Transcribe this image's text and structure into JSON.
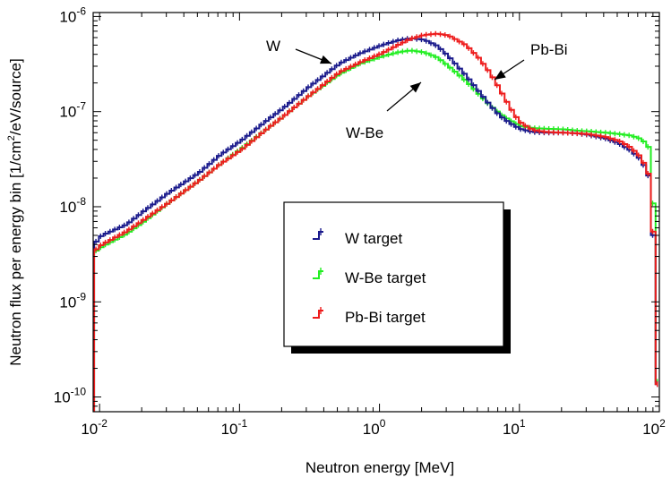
{
  "chart_data": {
    "type": "line",
    "title": "",
    "xlabel": "Neutron energy [MeV]",
    "ylabel_parts": [
      "Neutron flux per energy bin [1/cm",
      "2",
      "/eV/source]"
    ],
    "x_scale": "log",
    "y_scale": "log",
    "xlim": [
      0.009,
      100
    ],
    "ylim": [
      7e-11,
      1.1e-06
    ],
    "grid": false,
    "x_ticks": [
      {
        "value": 0.01,
        "base": "10",
        "exp": "-2"
      },
      {
        "value": 0.1,
        "base": "10",
        "exp": "-1"
      },
      {
        "value": 1,
        "base": "10",
        "exp": "0"
      },
      {
        "value": 10,
        "base": "10",
        "exp": "1"
      },
      {
        "value": 100,
        "base": "10",
        "exp": "2"
      }
    ],
    "y_ticks": [
      {
        "value": 1e-10,
        "base": "10",
        "exp": "-10"
      },
      {
        "value": 1e-09,
        "base": "10",
        "exp": "-9"
      },
      {
        "value": 1e-08,
        "base": "10",
        "exp": "-8"
      },
      {
        "value": 1e-07,
        "base": "10",
        "exp": "-7"
      },
      {
        "value": 1e-06,
        "base": "10",
        "exp": "-6"
      }
    ],
    "legend": {
      "position": "center",
      "entries": [
        {
          "label": "W target",
          "color": "#1a1a8c"
        },
        {
          "label": "W-Be target",
          "color": "#22ee22"
        },
        {
          "label": "Pb-Bi target",
          "color": "#ee1c1c"
        }
      ]
    },
    "annotations": [
      {
        "text": "W",
        "arrow_to": [
          0.58,
          4.5e-07
        ]
      },
      {
        "text": "Pb-Bi",
        "arrow_to": [
          6.0,
          2.9e-07
        ]
      },
      {
        "text": "W-Be",
        "arrow_to": [
          2.9,
          2.7e-07
        ]
      }
    ],
    "series": [
      {
        "name": "W target",
        "color": "#1a1a8c",
        "x": [
          0.009,
          0.01,
          0.015,
          0.02,
          0.03,
          0.05,
          0.07,
          0.1,
          0.15,
          0.2,
          0.3,
          0.5,
          0.7,
          1.0,
          1.3,
          1.6,
          2.0,
          2.5,
          3.0,
          4.0,
          5.0,
          6.0,
          7.0,
          8.0,
          9.0,
          10,
          12,
          15,
          20,
          25,
          30,
          40,
          50,
          60,
          70,
          80,
          85,
          88,
          90,
          92,
          95,
          98
        ],
        "y": [
          4.2e-09,
          5e-09,
          6.5e-09,
          9e-09,
          1.4e-08,
          2.3e-08,
          3.5e-08,
          5e-08,
          8e-08,
          1.1e-07,
          1.8e-07,
          3.2e-07,
          4.1e-07,
          5e-07,
          5.6e-07,
          5.9e-07,
          5.7e-07,
          4.9e-07,
          3.8e-07,
          2.4e-07,
          1.6e-07,
          1.15e-07,
          9e-08,
          7.8e-08,
          7e-08,
          6.5e-08,
          6.1e-08,
          6e-08,
          6e-08,
          5.9e-08,
          5.7e-08,
          5.2e-08,
          4.6e-08,
          3.9e-08,
          3.2e-08,
          2.3e-08,
          1e-08,
          3.5e-09,
          9e-10,
          2.5e-10,
          1e-10,
          8e-11
        ]
      },
      {
        "name": "W-Be target",
        "color": "#22ee22",
        "x": [
          0.009,
          0.01,
          0.015,
          0.02,
          0.03,
          0.05,
          0.07,
          0.1,
          0.15,
          0.2,
          0.3,
          0.5,
          0.7,
          1.0,
          1.3,
          1.6,
          2.0,
          2.5,
          3.0,
          4.0,
          5.0,
          6.0,
          7.0,
          8.0,
          9.0,
          10,
          12,
          15,
          20,
          25,
          30,
          40,
          50,
          60,
          70,
          80,
          85,
          88,
          90,
          92,
          95,
          98
        ],
        "y": [
          3.4e-09,
          3.8e-09,
          5.2e-09,
          7e-09,
          1.1e-08,
          1.9e-08,
          2.8e-08,
          4.1e-08,
          6.5e-08,
          9e-08,
          1.45e-07,
          2.5e-07,
          3.2e-07,
          3.8e-07,
          4.2e-07,
          4.4e-07,
          4.2e-07,
          3.7e-07,
          3e-07,
          2.1e-07,
          1.5e-07,
          1.15e-07,
          9.5e-08,
          8.3e-08,
          7.5e-08,
          7e-08,
          6.7e-08,
          6.6e-08,
          6.5e-08,
          6.3e-08,
          6.2e-08,
          6e-08,
          5.8e-08,
          5.6e-08,
          5.2e-08,
          4.5e-08,
          2.5e-08,
          7e-09,
          1.2e-09,
          3e-10,
          1e-10,
          8e-11
        ]
      },
      {
        "name": "Pb-Bi target",
        "color": "#ee1c1c",
        "x": [
          0.009,
          0.01,
          0.015,
          0.02,
          0.03,
          0.05,
          0.07,
          0.1,
          0.15,
          0.2,
          0.3,
          0.5,
          0.7,
          1.0,
          1.3,
          1.6,
          2.0,
          2.5,
          3.0,
          4.0,
          5.0,
          6.0,
          7.0,
          8.0,
          9.0,
          10,
          12,
          15,
          20,
          25,
          30,
          40,
          50,
          60,
          70,
          80,
          85,
          88,
          90,
          92,
          95,
          98
        ],
        "y": [
          3.5e-09,
          4e-09,
          5.5e-09,
          7.3e-09,
          1.1e-08,
          1.9e-08,
          2.8e-08,
          4e-08,
          6.5e-08,
          9e-08,
          1.45e-07,
          2.6e-07,
          3.3e-07,
          4.1e-07,
          5e-07,
          5.8e-07,
          6.4e-07,
          6.6e-07,
          6.3e-07,
          5e-07,
          3.6e-07,
          2.5e-07,
          1.7e-07,
          1.2e-07,
          9e-08,
          7.5e-08,
          6.4e-08,
          6.1e-08,
          6e-08,
          5.9e-08,
          5.8e-08,
          5.4e-08,
          4.9e-08,
          4.2e-08,
          3.4e-08,
          2.4e-08,
          1.1e-08,
          3.8e-09,
          9.5e-10,
          2.5e-10,
          1e-10,
          8e-11
        ]
      }
    ]
  }
}
